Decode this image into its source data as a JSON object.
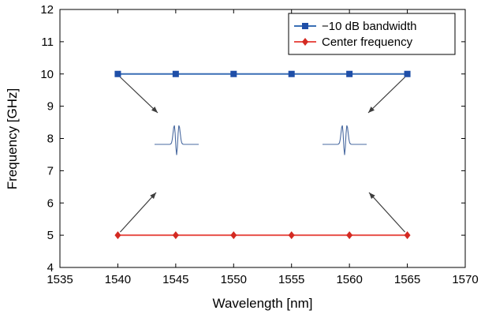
{
  "chart_data": {
    "type": "line",
    "title": "",
    "xlabel": "Wavelength [nm]",
    "ylabel": "Frequency [GHz]",
    "xlim": [
      1535,
      1570
    ],
    "ylim": [
      4,
      12
    ],
    "xticks": [
      1535,
      1540,
      1545,
      1550,
      1555,
      1560,
      1565,
      1570
    ],
    "yticks": [
      4,
      5,
      6,
      7,
      8,
      9,
      10,
      11,
      12
    ],
    "grid": false,
    "legend_position": "top-right",
    "x": [
      1540,
      1545,
      1550,
      1555,
      1560,
      1565
    ],
    "series": [
      {
        "name": "−10 dB bandwidth",
        "values": [
          10,
          10,
          10,
          10,
          10,
          10
        ],
        "color": "#3a6fb5",
        "marker_color": "#1f4fa8",
        "marker": "square"
      },
      {
        "name": "Center frequency",
        "values": [
          5,
          5,
          5,
          5,
          5,
          5
        ],
        "color": "#e8514a",
        "marker_color": "#d42a22",
        "marker": "diamond"
      }
    ],
    "annotations": {
      "arrow_color": "#3d3d3d",
      "inset_color": "#4a6aa0",
      "insets": [
        "left-response-inset",
        "right-response-inset"
      ]
    }
  }
}
